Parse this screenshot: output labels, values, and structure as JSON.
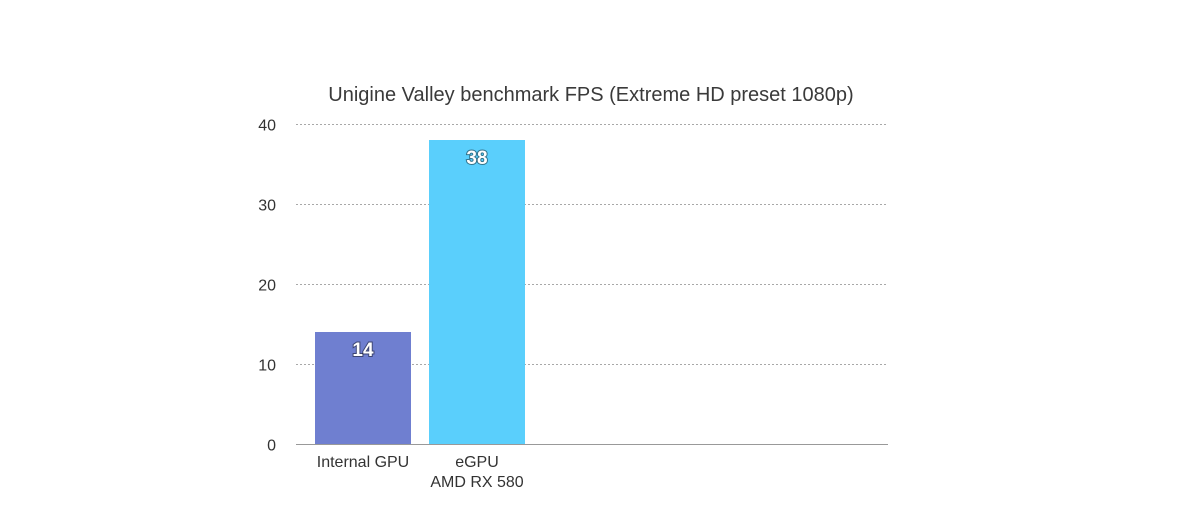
{
  "chart_data": {
    "type": "bar",
    "title": "Unigine Valley benchmark FPS (Extreme HD preset 1080p)",
    "xlabel": "",
    "ylabel": "",
    "categories": [
      [
        "Internal GPU"
      ],
      [
        "eGPU",
        "AMD RX 580"
      ]
    ],
    "values": [
      14,
      38
    ],
    "colors": [
      "#6f7fd0",
      "#5acffc"
    ],
    "ylim": [
      0,
      40
    ],
    "yticks": [
      0,
      10,
      20,
      30,
      40
    ],
    "grid": true,
    "legend": "none"
  }
}
